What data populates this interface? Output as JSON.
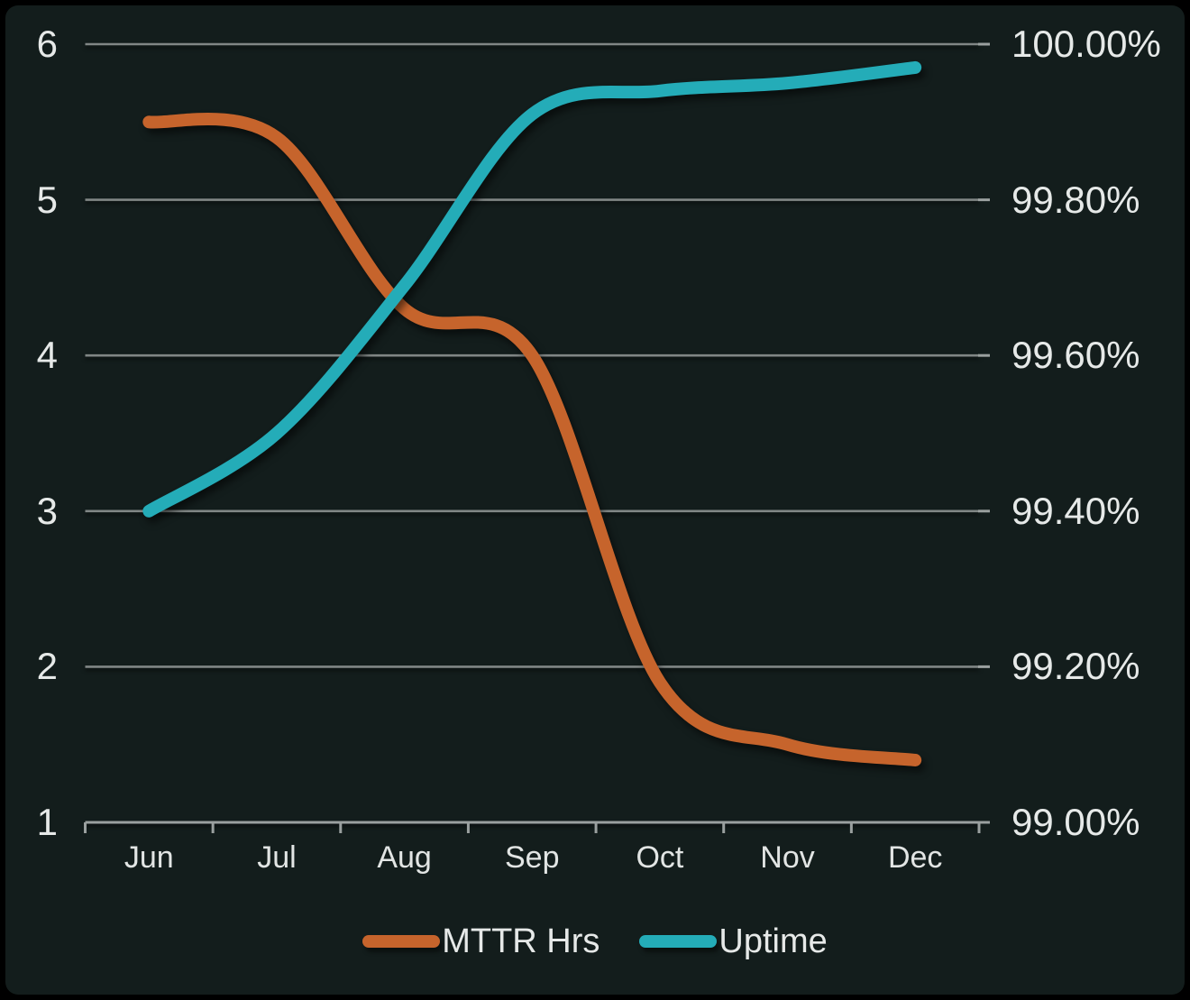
{
  "chart_data": {
    "type": "line",
    "title": "",
    "categories": [
      "Jun",
      "Jul",
      "Aug",
      "Sep",
      "Oct",
      "Nov",
      "Dec"
    ],
    "series": [
      {
        "name": "MTTR Hrs",
        "axis": "left",
        "color": "#c6642c",
        "values": [
          5.5,
          5.4,
          4.3,
          4.0,
          1.9,
          1.5,
          1.4
        ]
      },
      {
        "name": "Uptime",
        "axis": "right",
        "color": "#24acb8",
        "values": [
          99.4,
          99.5,
          99.69,
          99.91,
          99.94,
          99.95,
          99.97
        ]
      }
    ],
    "left_axis": {
      "min": 1,
      "max": 6,
      "tick_labels": [
        "6",
        "5",
        "4",
        "3",
        "2",
        "1"
      ]
    },
    "right_axis": {
      "min": 99.0,
      "max": 100.0,
      "tick_labels": [
        "100.00%",
        "99.80%",
        "99.60%",
        "99.40%",
        "99.20%",
        "99.00%"
      ]
    },
    "grid": true,
    "line_style": "smooth",
    "legend_position": "bottom",
    "colors": {
      "background": "#131d1c",
      "frame": "#000000",
      "gridline": "#808685",
      "axis_line": "#9aa09f",
      "label": "#e6e9e8"
    }
  }
}
